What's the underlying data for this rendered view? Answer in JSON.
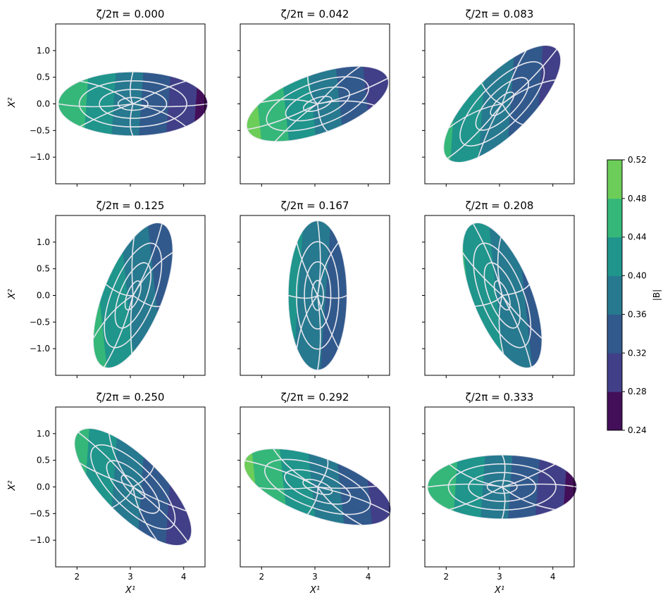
{
  "figure": {
    "title_prefix": "ζ/2π = "
  },
  "chart_data": {
    "type": "heatmap",
    "description_hidden": "",
    "xlabel": "X¹",
    "ylabel": "X²",
    "xlim": [
      1.6,
      4.4
    ],
    "ylim": [
      -1.5,
      1.5
    ],
    "xticks": [
      "2",
      "3",
      "4"
    ],
    "yticks": [
      "1.0",
      "0.5",
      "0.0",
      "−0.5",
      "−1.0"
    ],
    "xtick_values": [
      2,
      3,
      4
    ],
    "ytick_values": [
      1.0,
      0.5,
      0.0,
      -0.5,
      -1.0
    ],
    "panels": [
      {
        "title": "0.000",
        "angle_deg": 0,
        "semi_major": 1.4,
        "semi_minor": 0.6
      },
      {
        "title": "0.042",
        "angle_deg": 20,
        "semi_major": 1.4,
        "semi_minor": 0.55
      },
      {
        "title": "0.083",
        "angle_deg": 45,
        "semi_major": 1.45,
        "semi_minor": 0.55
      },
      {
        "title": "0.125",
        "angle_deg": 68,
        "semi_major": 1.45,
        "semi_minor": 0.55
      },
      {
        "title": "0.167",
        "angle_deg": 90,
        "semi_major": 1.4,
        "semi_minor": 0.55
      },
      {
        "title": "0.208",
        "angle_deg": 112,
        "semi_major": 1.45,
        "semi_minor": 0.55
      },
      {
        "title": "0.250",
        "angle_deg": 135,
        "semi_major": 1.45,
        "semi_minor": 0.55
      },
      {
        "title": "0.292",
        "angle_deg": 160,
        "semi_major": 1.45,
        "semi_minor": 0.55
      },
      {
        "title": "0.333",
        "angle_deg": 180,
        "semi_major": 1.4,
        "semi_minor": 0.6
      }
    ],
    "colorbar": {
      "label": "|B|",
      "levels": [
        0.24,
        0.28,
        0.32,
        0.36,
        0.4,
        0.44,
        0.48,
        0.52
      ],
      "tick_labels": [
        "0.52",
        "0.48",
        "0.44",
        "0.40",
        "0.36",
        "0.32",
        "0.28",
        "0.24"
      ],
      "colors": [
        "#440f59",
        "#413f87",
        "#31598c",
        "#26798e",
        "#1f958b",
        "#35b779",
        "#6ccd59"
      ]
    },
    "overflow_color": "#fde725",
    "grid_line_color": "#e6e6ee"
  }
}
